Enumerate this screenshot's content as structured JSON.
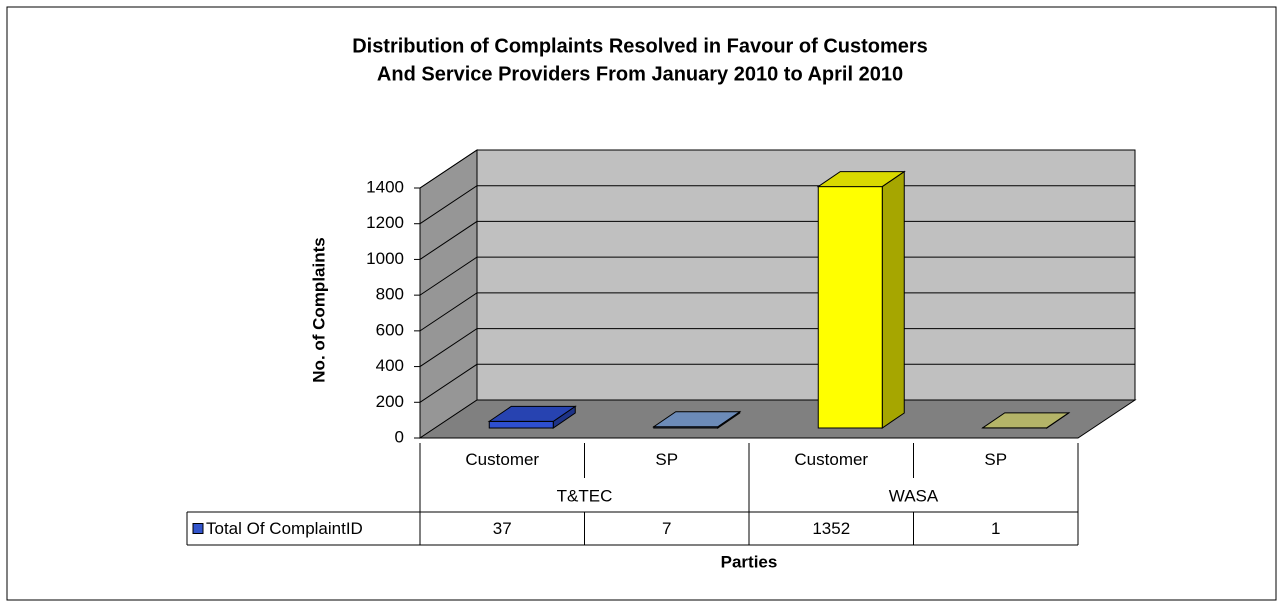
{
  "chart_data": {
    "type": "bar3d",
    "title": "Distribution of Complaints Resolved in Favour of Customers",
    "subtitle": "And Service Providers From January 2010 to April 2010",
    "y_label": "No. of Complaints",
    "x_label": "Parties",
    "categories": [
      "Customer",
      "SP",
      "Customer",
      "SP"
    ],
    "groups": [
      "T&TEC",
      "WASA"
    ],
    "series": [
      {
        "name": "Total Of ComplaintID",
        "color": "#3355cc",
        "colors": [
          "#2e4fd0",
          "#7fa3d8",
          "#ffff00",
          "#d4d47a"
        ],
        "values": [
          37,
          7,
          1352,
          1
        ]
      }
    ],
    "ylim": [
      0,
      1400
    ],
    "yticks": [
      0,
      200,
      400,
      600,
      800,
      1000,
      1200,
      1400
    ],
    "grid": true
  }
}
